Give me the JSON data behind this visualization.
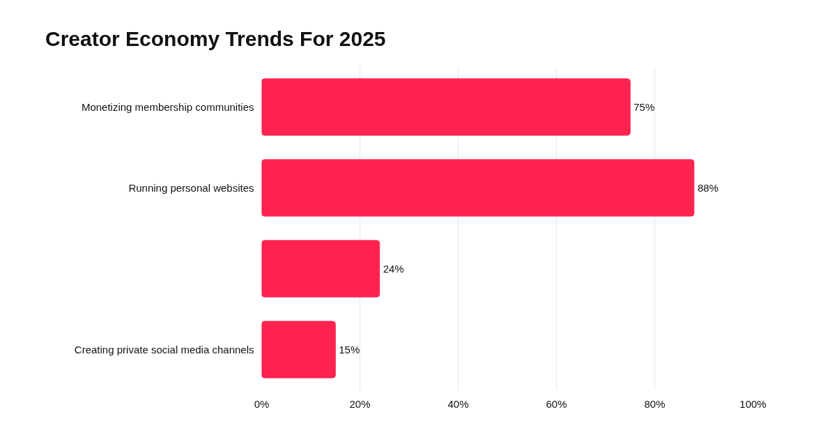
{
  "chart_data": {
    "type": "bar",
    "orientation": "horizontal",
    "title": "Creator Economy Trends For 2025",
    "categories": [
      "Monetizing membership communities",
      "Running personal websites",
      null,
      "Creating private social media channels"
    ],
    "values": [
      75,
      88,
      24,
      15
    ],
    "color": "#ff2450",
    "value_labels": [
      "75%",
      "88%",
      "24%",
      "15%"
    ],
    "xlim": [
      0,
      100
    ],
    "xticks": [
      {
        "value": 0,
        "label": "0%"
      },
      {
        "value": 20,
        "label": "20%"
      },
      {
        "value": 40,
        "label": "40%"
      },
      {
        "value": 60,
        "label": "60%"
      },
      {
        "value": 80,
        "label": "80%"
      },
      {
        "value": 100,
        "label": "100%"
      }
    ],
    "grid": "x"
  }
}
